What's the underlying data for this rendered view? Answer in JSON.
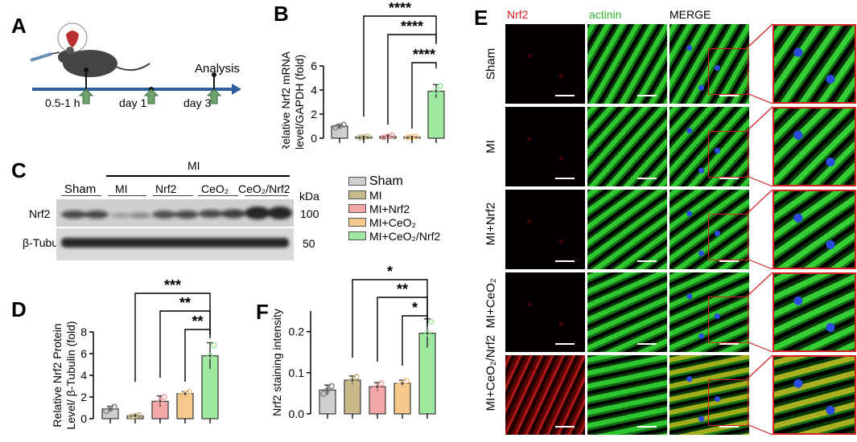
{
  "panels": {
    "A": "A",
    "B": "B",
    "C": "C",
    "D": "D",
    "E": "E",
    "F": "F"
  },
  "panelA": {
    "analysis_label": "Analysis",
    "timepoints": [
      "0.5-1 h",
      "day 1",
      "day 3"
    ]
  },
  "panelC": {
    "mi_header": "MI",
    "groups": [
      "Sham",
      "MI",
      "Nrf2",
      "CeO₂",
      "CeO₂/Nrf2"
    ],
    "rows": [
      "Nrf2",
      "β-Tubulin"
    ],
    "kda_label": "kDa",
    "kda_values": [
      "100",
      "50"
    ]
  },
  "legend": {
    "items": [
      {
        "label": "Sham",
        "color": "#cfcfcf"
      },
      {
        "label": "MI",
        "color": "#c8b98a"
      },
      {
        "label": "MI+Nrf2",
        "color": "#f4a6a6"
      },
      {
        "label": "MI+CeO₂",
        "color": "#f6c98a"
      },
      {
        "label": "MI+CeO₂/Nrf2",
        "color": "#9fe89f"
      }
    ]
  },
  "colors": {
    "edge": "#333333",
    "green_fluor": "#22c22a",
    "red_fluor": "#d42020",
    "blue_nuclei": "#2a4be0",
    "roi_box": "#d42020"
  },
  "panelE": {
    "columns": [
      "Nrf2",
      "actinin",
      "MERGE"
    ],
    "column_colors": [
      "#e02020",
      "#2fb52f",
      "#000000"
    ],
    "rows": [
      "Sham",
      "MI",
      "MI+Nrf2",
      "MI+CeO₂",
      "MI+CeO₂/Nrf2"
    ]
  },
  "chart_data": [
    {
      "panel": "B",
      "type": "bar",
      "ylabel": "Relative Nrf2 mRNA level/GAPDH (fold)",
      "categories": [
        "Sham",
        "MI",
        "MI+Nrf2",
        "MI+CeO₂",
        "MI+CeO₂/Nrf2"
      ],
      "values": [
        1.0,
        0.1,
        0.15,
        0.1,
        3.9
      ],
      "errors": [
        0.15,
        0.05,
        0.1,
        0.05,
        0.55
      ],
      "ylim": [
        0,
        6
      ],
      "yticks": [
        "0",
        "2",
        "4",
        "6"
      ],
      "significance": [
        "****",
        "****",
        "****"
      ]
    },
    {
      "panel": "D",
      "type": "bar",
      "ylabel": "Relative Nrf2 Protein Level/ β-Tubulin (fold)",
      "categories": [
        "Sham",
        "MI",
        "MI+Nrf2",
        "MI+CeO₂",
        "MI+CeO₂/Nrf2"
      ],
      "values": [
        0.9,
        0.25,
        1.6,
        2.3,
        5.8
      ],
      "errors": [
        0.25,
        0.1,
        0.5,
        0.2,
        1.2
      ],
      "ylim": [
        0,
        8
      ],
      "yticks": [
        "0",
        "2",
        "4",
        "6",
        "8"
      ],
      "significance": [
        "***",
        "**",
        "**"
      ]
    },
    {
      "panel": "F",
      "type": "bar",
      "ylabel": "Nrf2 staining intensity",
      "categories": [
        "Sham",
        "MI",
        "MI+Nrf2",
        "MI+CeO₂",
        "MI+CeO₂/Nrf2"
      ],
      "values": [
        0.058,
        0.082,
        0.066,
        0.074,
        0.196
      ],
      "errors": [
        0.012,
        0.01,
        0.01,
        0.008,
        0.035
      ],
      "ylim": [
        0,
        0.25
      ],
      "yticks": [
        "0.0",
        "0.1",
        "0.2"
      ],
      "significance": [
        "*",
        "**",
        "*"
      ]
    }
  ]
}
